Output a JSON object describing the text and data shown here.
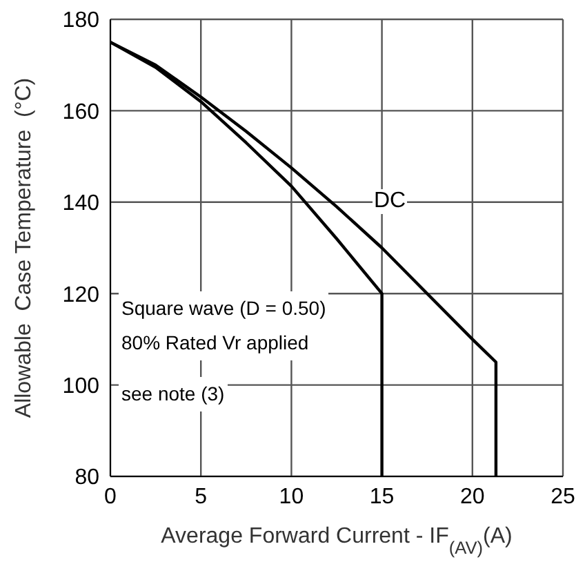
{
  "chart_data": {
    "type": "line",
    "xlabel": "Average Forward Current - IF$_{(AV)}$(A)",
    "ylabel": "Allowable  Case Temperature  (°C)",
    "series": [
      {
        "name": "DC",
        "color": "#000000",
        "x": [
          0,
          2.5,
          5,
          7.5,
          10,
          12.5,
          15,
          17.5,
          20,
          21.3,
          21.3
        ],
        "values": [
          175,
          170,
          163,
          155.5,
          147.5,
          139,
          130,
          120,
          110,
          105,
          80
        ]
      },
      {
        "color": "#000000",
        "x": [
          0,
          2.5,
          5,
          7.5,
          10,
          12.5,
          15,
          15
        ],
        "values": [
          175,
          169.5,
          162,
          153,
          143.5,
          132,
          120,
          80
        ]
      }
    ],
    "annotations": [
      "Square wave (D = 0.50)",
      "80% Rated Vr applied",
      "see note (3)"
    ],
    "xlim": [
      0,
      25
    ],
    "xticks": [
      0,
      5,
      10,
      15,
      20,
      25
    ],
    "ylim": [
      80,
      180
    ],
    "yticks": [
      80,
      100,
      120,
      140,
      160,
      180
    ],
    "grid": true,
    "marker": "none",
    "line_style": "solid"
  }
}
